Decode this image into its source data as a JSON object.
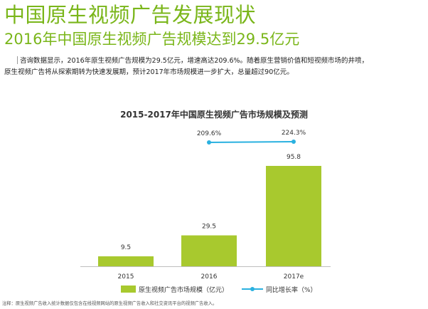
{
  "page": {
    "title": "中国原生视频广告发展现状",
    "subtitle": "2016年中国原生视频广告规模达到29.5亿元",
    "paragraph_line1": "咨询数据显示，2016年原生视频广告规模为29.5亿元，增速高达209.6%。随着原生营销价值和短视频市场的井喷，",
    "paragraph_line2": "原生视频广告将从探索期转为快速发展期，预计2017年市场规模进一步扩大，总量超过90亿元。",
    "footnote": "注释：原生视频广告收入统计数据仅包含在线视频网站的原生视频广告收入和社交资讯平台的视频广告收入。"
  },
  "chart_data": {
    "type": "bar",
    "title": "2015-2017年中国原生视频广告市场规模及预测",
    "categories": [
      "2015",
      "2016",
      "2017e"
    ],
    "series": [
      {
        "name": "原生视频广告市场规模（亿元）",
        "type": "bar",
        "values": [
          9.5,
          29.5,
          95.8
        ],
        "labels": [
          "9.5",
          "29.5",
          "95.8"
        ],
        "color": "#a8c92e"
      },
      {
        "name": "同比增长率（%）",
        "type": "line",
        "values": [
          null,
          209.6,
          224.3
        ],
        "labels": [
          "",
          "209.6%",
          "224.3%"
        ],
        "color": "#2ab1e0"
      }
    ],
    "legend": "bottom-center"
  }
}
